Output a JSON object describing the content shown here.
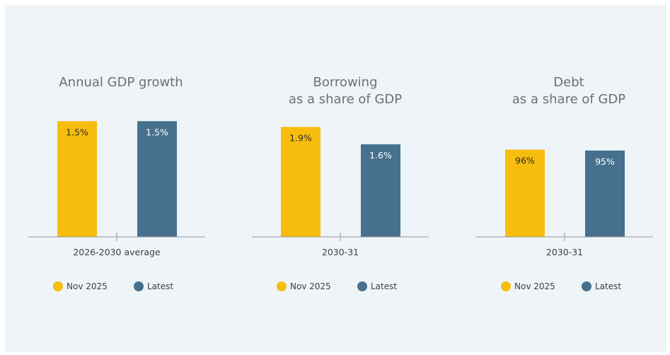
{
  "colors": {
    "nov": "#f6bd0e",
    "latest": "#46708e",
    "background": "#eef4f7"
  },
  "chart_data": [
    {
      "type": "bar",
      "title_lines": [
        "Annual GDP growth"
      ],
      "categories": [
        "2026-2030 average"
      ],
      "series": [
        {
          "name": "Nov 2025",
          "values": [
            1.5
          ],
          "label": "1.5%"
        },
        {
          "name": "Latest",
          "values": [
            1.5
          ],
          "label": "1.5%"
        }
      ],
      "ylim": [
        0,
        1.65
      ],
      "grid": false,
      "legend_placement": "bottom"
    },
    {
      "type": "bar",
      "title_lines": [
        "Borrowing",
        "as a share of GDP"
      ],
      "categories": [
        "2030-31"
      ],
      "series": [
        {
          "name": "Nov 2025",
          "values": [
            1.9
          ],
          "label": "1.9%"
        },
        {
          "name": "Latest",
          "values": [
            1.6
          ],
          "label": "1.6%"
        }
      ],
      "ylim": [
        0,
        2.2
      ],
      "grid": false,
      "legend_placement": "bottom"
    },
    {
      "type": "bar",
      "title_lines": [
        "Debt",
        "as a share of GDP"
      ],
      "categories": [
        "2030-31"
      ],
      "series": [
        {
          "name": "Nov 2025",
          "values": [
            96
          ],
          "label": "96%"
        },
        {
          "name": "Latest",
          "values": [
            95
          ],
          "label": "95%"
        }
      ],
      "ylim": [
        0,
        140
      ],
      "grid": false,
      "legend_placement": "bottom"
    }
  ]
}
